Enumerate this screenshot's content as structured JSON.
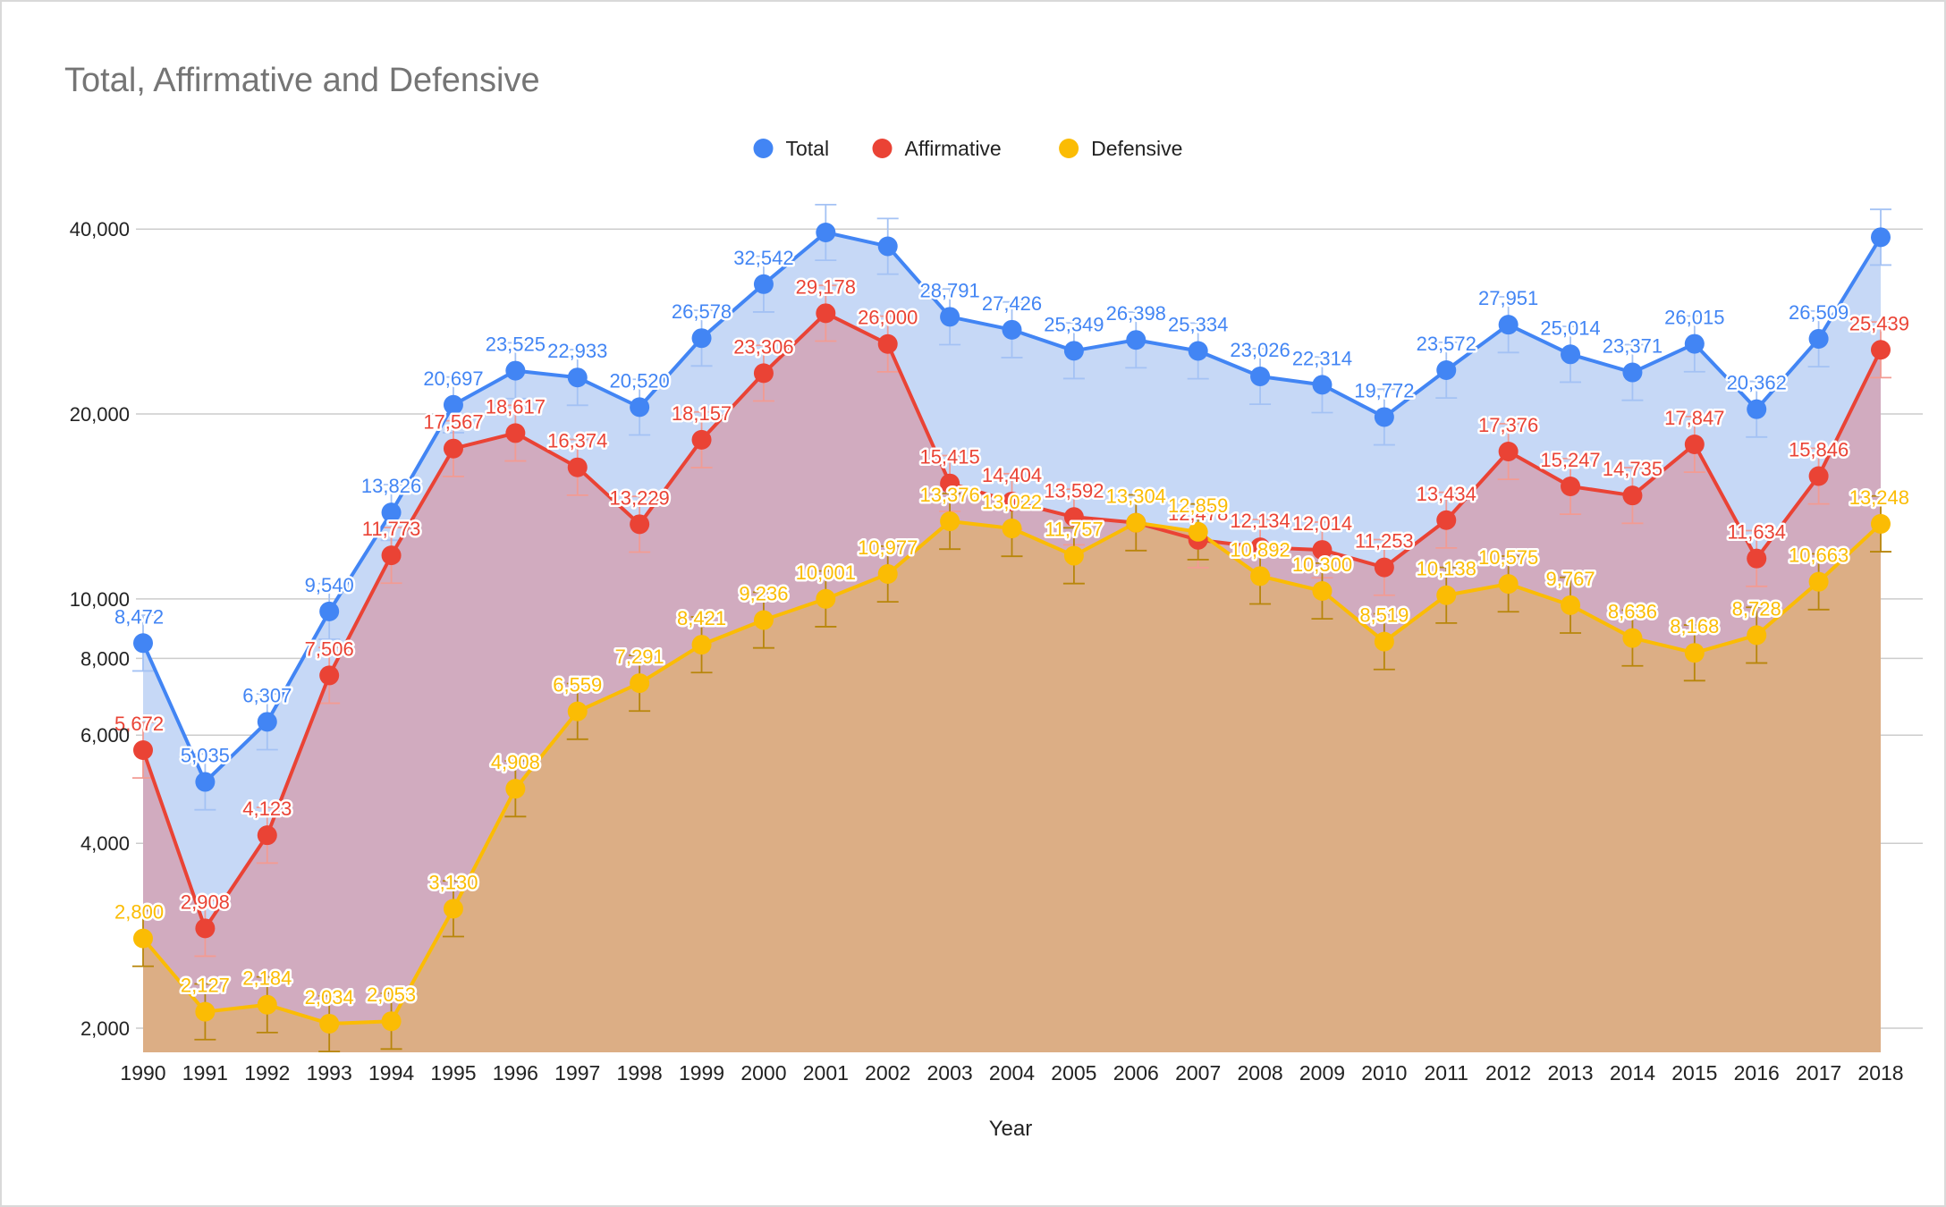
{
  "chart_data": {
    "type": "area",
    "title": "Total, Affirmative and Defensive",
    "xlabel": "Year",
    "ylabel": "",
    "y_scale": "log",
    "ylim": [
      1850,
      43000
    ],
    "yticks": [
      2000,
      4000,
      6000,
      8000,
      10000,
      20000,
      40000
    ],
    "ytick_labels": [
      "2,000",
      "4,000",
      "6,000",
      "8,000",
      "10,000",
      "20,000",
      "40,000"
    ],
    "grid": true,
    "legend_position": "top",
    "error_bars": true,
    "categories": [
      "1990",
      "1991",
      "1992",
      "1993",
      "1994",
      "1995",
      "1996",
      "1997",
      "1998",
      "1999",
      "2000",
      "2001",
      "2002",
      "2003",
      "2004",
      "2005",
      "2006",
      "2007",
      "2008",
      "2009",
      "2010",
      "2011",
      "2012",
      "2013",
      "2014",
      "2015",
      "2016",
      "2017",
      "2018"
    ],
    "series": [
      {
        "name": "Total",
        "color": "#4285f4",
        "fill": "#c6d8f6",
        "values": [
          8472,
          5035,
          6307,
          9540,
          13826,
          20697,
          23525,
          22933,
          20520,
          26578,
          32542,
          39500,
          37500,
          28791,
          27426,
          25349,
          26398,
          25334,
          23026,
          22314,
          19772,
          23572,
          27951,
          25014,
          23371,
          26015,
          20362,
          26509,
          38800
        ],
        "labels": [
          "8,472",
          "5,035",
          "6,307",
          "9,540",
          "13,826",
          "20,697",
          "23,525",
          "22,933",
          "20,520",
          "26,578",
          "32,542",
          "",
          "",
          "28,791",
          "27,426",
          "25,349",
          "26,398",
          "25,334",
          "23,026",
          "22,314",
          "19,772",
          "23,572",
          "27,951",
          "25,014",
          "23,371",
          "26,015",
          "20,362",
          "26,509",
          ""
        ]
      },
      {
        "name": "Affirmative",
        "color": "#ea4335",
        "fill": "#d1abbf",
        "values": [
          5672,
          2908,
          4123,
          7506,
          11773,
          17567,
          18617,
          16374,
          13229,
          18157,
          23306,
          29178,
          26000,
          15415,
          14404,
          13592,
          13304,
          12478,
          12134,
          12014,
          11253,
          13434,
          17376,
          15247,
          14735,
          17847,
          11634,
          15846,
          25439
        ],
        "labels": [
          "5,672",
          "2,908",
          "4,123",
          "7,506",
          "11,773",
          "17,567",
          "18,617",
          "16,374",
          "13,229",
          "18,157",
          "23,306",
          "29,178",
          "26,000",
          "15,415",
          "14,404",
          "13,592",
          "",
          "12,478",
          "12,134",
          "12,014",
          "11,253",
          "13,434",
          "17,376",
          "15,247",
          "14,735",
          "17,847",
          "11,634",
          "15,846",
          "25,439"
        ]
      },
      {
        "name": "Defensive",
        "color": "#fbbc04",
        "fill": "#dcae85",
        "values": [
          2800,
          2127,
          2184,
          2034,
          2053,
          3130,
          4908,
          6559,
          7291,
          8421,
          9236,
          10001,
          10977,
          13376,
          13022,
          11757,
          13304,
          12859,
          10892,
          10300,
          8519,
          10138,
          10575,
          9767,
          8636,
          8168,
          8728,
          10663,
          13248
        ],
        "labels": [
          "2,800",
          "2,127",
          "2,184",
          "2,034",
          "2,053",
          "3,130",
          "4,908",
          "6,559",
          "7,291",
          "8,421",
          "9,236",
          "10,001",
          "10,977",
          "13,376",
          "13,022",
          "11,757",
          "13,304",
          "12,859",
          "10,892",
          "10,300",
          "8,519",
          "10,138",
          "10,575",
          "9,767",
          "8,636",
          "8,168",
          "8,728",
          "10,663",
          "13,248"
        ]
      }
    ]
  }
}
